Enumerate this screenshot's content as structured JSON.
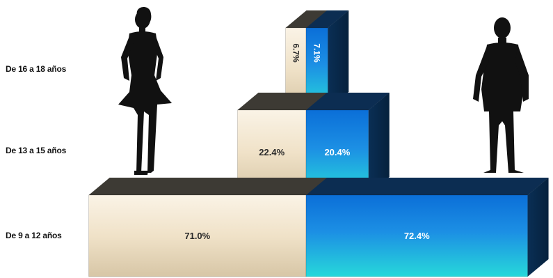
{
  "chart_data": {
    "type": "bar",
    "orientation": "horizontal-pyramid",
    "categories": [
      "De 16 a 18 años",
      "De 13 a 15 años",
      "De 9 a 12 años"
    ],
    "series": [
      {
        "values": [
          6.7,
          22.4,
          71.0
        ],
        "labels": [
          "6.7%",
          "22.4%",
          "71.0%"
        ],
        "color": "#f2e6d2"
      },
      {
        "values": [
          7.1,
          20.4,
          72.4
        ],
        "labels": [
          "7.1%",
          "20.4%",
          "72.4%"
        ],
        "color": "#1e8fdc"
      }
    ],
    "title": "",
    "xlabel": "",
    "ylabel": "",
    "grid": false,
    "legend": "none",
    "icons": [
      "female-silhouette-icon",
      "male-silhouette-icon"
    ]
  }
}
